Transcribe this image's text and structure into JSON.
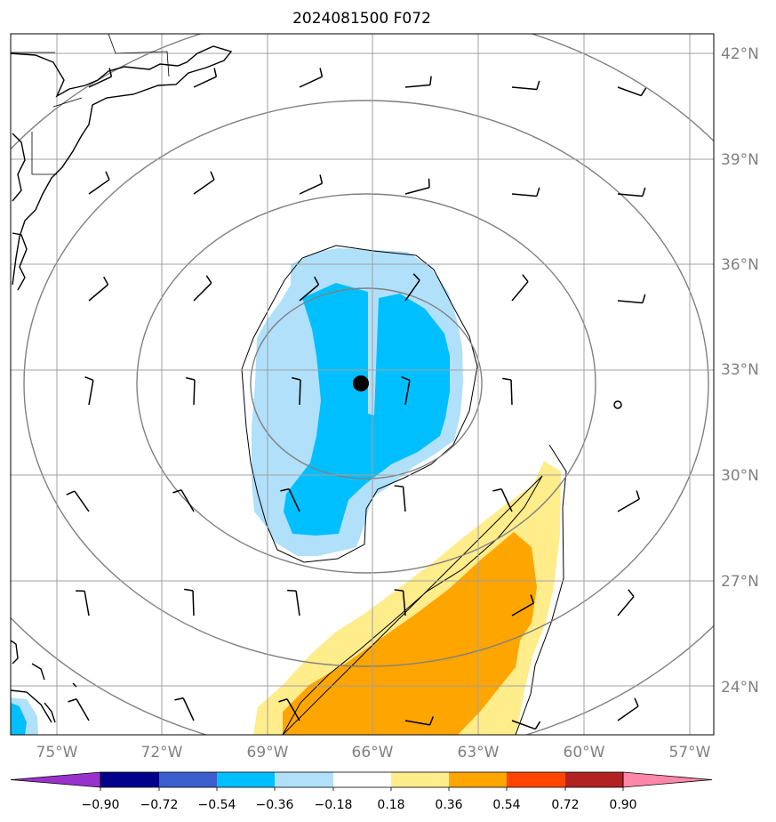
{
  "title": "2024081500 F072",
  "chart_data": {
    "type": "contourf map",
    "title": "2024081500 F072",
    "projection": "orthographic-like, centered near 33°N 66°W",
    "lon_range": [
      -76.3,
      -56.3
    ],
    "lat_range": [
      22.6,
      42.6
    ],
    "x_ticks": [
      "75°W",
      "72°W",
      "69°W",
      "66°W",
      "63°W",
      "60°W",
      "57°W"
    ],
    "y_ticks": [
      "24°N",
      "27°N",
      "30°N",
      "33°N",
      "36°N",
      "39°N",
      "42°N"
    ],
    "gridlines": true,
    "center_marker": {
      "lon": -66.3,
      "lat": 32.6
    },
    "range_rings": 4,
    "colorbar": {
      "orientation": "horizontal",
      "extend": "both",
      "levels": [
        -0.9,
        -0.72,
        -0.54,
        -0.36,
        -0.18,
        0.18,
        0.36,
        0.54,
        0.72,
        0.9
      ],
      "tick_labels": [
        "−0.90",
        "−0.72",
        "−0.54",
        "−0.36",
        "−0.18",
        "0.18",
        "0.36",
        "0.54",
        "0.72",
        "0.90"
      ],
      "colors": [
        "#9932cc",
        "#00008b",
        "#3a5fcd",
        "#00bfff",
        "#b0e0fa",
        "#ffffff",
        "#ffec8b",
        "#ffa500",
        "#ff4500",
        "#b22222",
        "#ff88aa"
      ]
    },
    "filled_regions": [
      {
        "range": "-0.36 to -0.18",
        "color": "#b0e0fa",
        "where": "around storm center, 28°N–36.5°N, 70°W–63°W"
      },
      {
        "range": "-0.54 to -0.36",
        "color": "#00bfff",
        "where": "core near 66°W, 29°N–35.5°N"
      },
      {
        "range": "0.18 to 0.36",
        "color": "#ffec8b",
        "where": "southeast band 23°N–31°N, 69°W–61°W"
      },
      {
        "range": "0.36 to 0.54",
        "color": "#ffa500",
        "where": "inner southeast band 23°N–29°N, 68°W–62°W"
      }
    ],
    "wind_barbs": "regular grid every 3° lon × 3° lat"
  }
}
